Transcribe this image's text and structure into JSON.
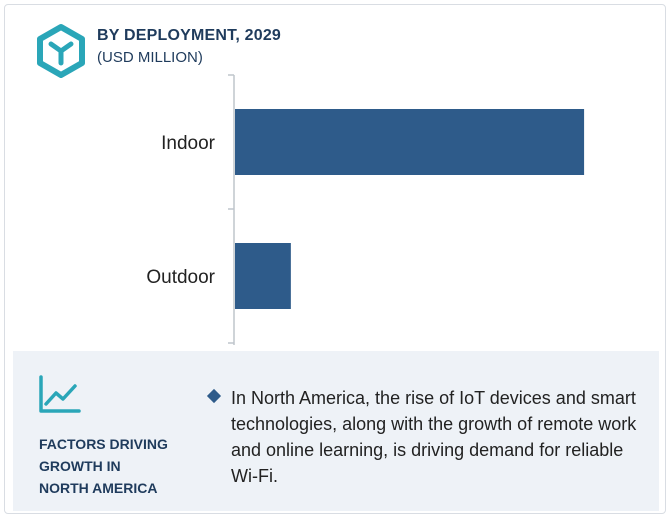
{
  "header": {
    "title": "BY DEPLOYMENT, 2029",
    "subtitle": "(USD MILLION)",
    "icon": "cube-icon"
  },
  "colors": {
    "bar": "#2e5b8a",
    "accent": "#2aa6b8",
    "heading": "#1f3b5c",
    "footer_bg": "#eef2f7"
  },
  "chart_data": {
    "type": "bar",
    "orientation": "horizontal",
    "categories": [
      "Indoor",
      "Outdoor"
    ],
    "values": [
      100,
      16
    ],
    "xlim": [
      0,
      110
    ],
    "grid": false,
    "legend": "none"
  },
  "footer": {
    "icon": "trend-chart-icon",
    "title_lines": [
      "FACTORS DRIVING",
      "GROWTH IN",
      "NORTH AMERICA"
    ],
    "text": "In North America, the rise of IoT devices and smart technologies, along with the growth of remote work and online learning, is driving demand for reliable Wi-Fi."
  }
}
